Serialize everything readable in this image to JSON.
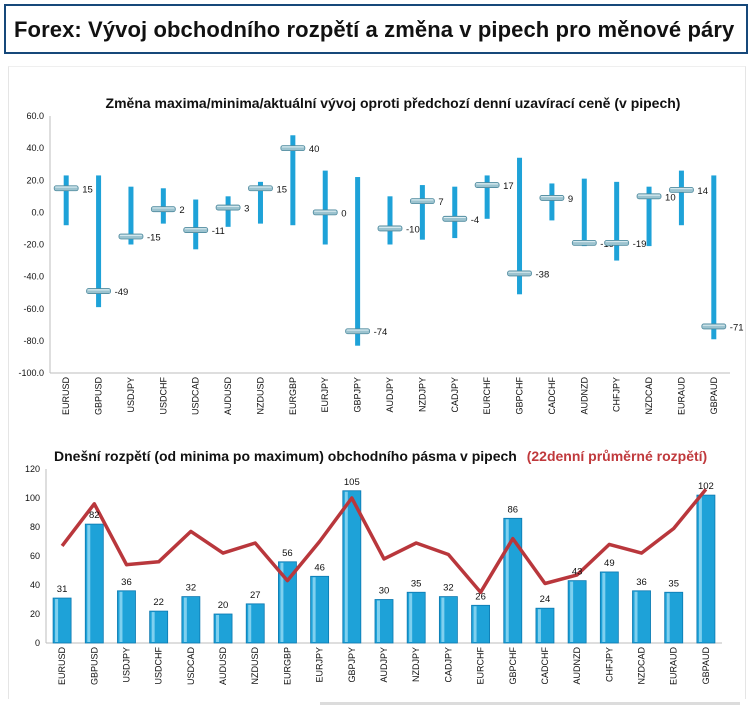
{
  "header": {
    "title": "Forex: Vývoj obchodního rozpětí a změna v pipech pro měnové páry"
  },
  "colors": {
    "bar": "#1ea2d8",
    "bar_dark": "#0b78b0",
    "line": "#b9373c",
    "header_border": "#16487a"
  },
  "chart_data": [
    {
      "type": "range",
      "title": "Změna maxima/minima/aktuální vývoj oproti předchozí denní uzavírací ceně (v pipech)",
      "ylim": [
        -100,
        60
      ],
      "yticks": [
        "60.0",
        "40.0",
        "20.0",
        "0.0",
        "-20.0",
        "-40.0",
        "-60.0",
        "-80.0",
        "-100.0"
      ],
      "ytick_values": [
        60,
        40,
        20,
        0,
        -20,
        -40,
        -60,
        -80,
        -100
      ],
      "categories": [
        "EURUSD",
        "GBPUSD",
        "USDJPY",
        "USDCHF",
        "USDCAD",
        "AUDUSD",
        "NZDUSD",
        "EURGBP",
        "EURJPY",
        "GBPJPY",
        "AUDJPY",
        "NZDJPY",
        "CADJPY",
        "EURCHF",
        "GBPCHF",
        "CADCHF",
        "AUDNZD",
        "CHFJPY",
        "NZDCAD",
        "EURAUD",
        "GBPAUD"
      ],
      "high": [
        23,
        23,
        16,
        15,
        8,
        10,
        19,
        48,
        26,
        22,
        10,
        17,
        16,
        23,
        34,
        18,
        21,
        19,
        16,
        26,
        23
      ],
      "low": [
        -8,
        -59,
        -20,
        -7,
        -23,
        -9,
        -7,
        -8,
        -20,
        -83,
        -20,
        -17,
        -16,
        -4,
        -51,
        -5,
        -21,
        -30,
        -21,
        -8,
        -79
      ],
      "current": [
        15,
        -49,
        -15,
        2,
        -11,
        3,
        15,
        40,
        0,
        -74,
        -10,
        7,
        -4,
        17,
        -38,
        9,
        -19,
        -19,
        10,
        14,
        -71
      ],
      "labels": [
        "15",
        "-49",
        "-15",
        "2",
        "-11",
        "3",
        "15",
        "40",
        "0",
        "-74",
        "-10",
        "7",
        "-4",
        "17",
        "-38",
        "9",
        "-19",
        "-19",
        "10",
        "14",
        "-71"
      ]
    },
    {
      "type": "bar+line",
      "title": "Dnešní rozpětí (od minima po maximum) obchodního pásma v pipech",
      "title_secondary": "(22denní průměrné rozpětí)",
      "ylim": [
        0,
        120
      ],
      "yticks": [
        "120",
        "100",
        "80",
        "60",
        "40",
        "20",
        "0"
      ],
      "ytick_values": [
        120,
        100,
        80,
        60,
        40,
        20,
        0
      ],
      "categories": [
        "EURUSD",
        "GBPUSD",
        "USDJPY",
        "USDCHF",
        "USDCAD",
        "AUDUSD",
        "NZDUSD",
        "EURGBP",
        "EURJPY",
        "GBPJPY",
        "AUDJPY",
        "NZDJPY",
        "CADJPY",
        "EURCHF",
        "GBPCHF",
        "CADCHF",
        "AUDNZD",
        "CHFJPY",
        "NZDCAD",
        "EURAUD",
        "GBPAUD"
      ],
      "series": [
        {
          "type": "bar",
          "values": [
            31,
            82,
            36,
            22,
            32,
            20,
            27,
            56,
            46,
            105,
            30,
            35,
            32,
            26,
            86,
            24,
            43,
            49,
            36,
            35,
            102
          ],
          "labels": [
            "31",
            "82",
            "36",
            "22",
            "32",
            "20",
            "27",
            "56",
            "46",
            "105",
            "30",
            "35",
            "32",
            "26",
            "86",
            "24",
            "43",
            "49",
            "36",
            "35",
            "102"
          ]
        },
        {
          "type": "line",
          "values": [
            67,
            96,
            54,
            56,
            77,
            62,
            69,
            43,
            70,
            100,
            58,
            69,
            61,
            35,
            72,
            41,
            47,
            68,
            62,
            79,
            106
          ]
        }
      ]
    }
  ]
}
